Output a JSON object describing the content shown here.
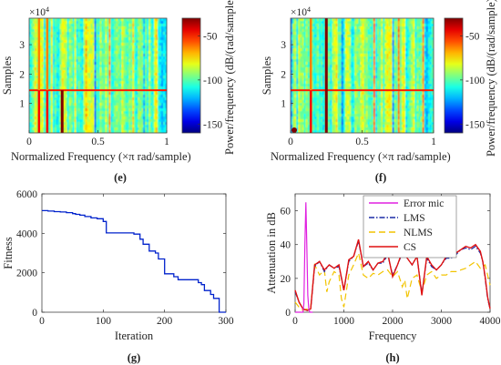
{
  "figure": {
    "captions": [
      "(e)",
      "(f)",
      "(g)",
      "(h)"
    ]
  },
  "chart_data": [
    {
      "type": "heatmap",
      "panel": "(e)",
      "xlabel": "Normalized Frequency  (×π rad/sample)",
      "ylabel": "Samples",
      "x_ticks": [
        0,
        0.5,
        1
      ],
      "x_tick_labels": [
        "0",
        "0.5",
        "1"
      ],
      "y_ticks": [
        1,
        2,
        3
      ],
      "y_tick_labels": [
        "1",
        "2",
        "3"
      ],
      "y_multiplier": "×10^4",
      "y_multiplier_base": "×10",
      "y_multiplier_exp": "4",
      "xlim": [
        0,
        1
      ],
      "ylim": [
        0,
        3.9
      ],
      "colorbar": {
        "label": "Power/frequency (dB/(rad/sample)",
        "ticks": [
          -50,
          -100,
          -150
        ],
        "tick_labels": [
          "-50",
          "-100",
          "-150"
        ],
        "range": [
          -160,
          -30
        ],
        "colormap": "jet"
      },
      "features": {
        "horizontal_line_samples": 1.45,
        "strong_tonal_lines_normalized_freq": [
          0.24
        ],
        "moderate_tonal_lines_normalized_freq": [
          0.13,
          0.07
        ]
      }
    },
    {
      "type": "heatmap",
      "panel": "(f)",
      "xlabel": "Normalized Frequency  (×π rad/sample)",
      "ylabel": "Samples",
      "x_ticks": [
        0,
        0.5,
        1
      ],
      "x_tick_labels": [
        "0",
        "0.5",
        "1"
      ],
      "y_ticks": [
        1,
        2,
        3
      ],
      "y_tick_labels": [
        "1",
        "2",
        "3"
      ],
      "y_multiplier": "×10^4",
      "y_multiplier_base": "×10",
      "y_multiplier_exp": "4",
      "xlim": [
        0,
        1
      ],
      "ylim": [
        0,
        3.9
      ],
      "colorbar": {
        "label": "Power/frequency (dB/(rad/sample))",
        "ticks": [
          -50,
          -100,
          -150
        ],
        "tick_labels": [
          "-50",
          "-100",
          "-150"
        ],
        "range": [
          -160,
          -30
        ],
        "colormap": "jet"
      },
      "features": {
        "horizontal_line_samples": 1.45,
        "strong_tonal_lines_normalized_freq": [
          0.25
        ],
        "moderate_tonal_lines_normalized_freq": [
          0.14
        ]
      }
    },
    {
      "type": "line",
      "panel": "(g)",
      "xlabel": "Iteration",
      "ylabel": "Fitness",
      "xlim": [
        0,
        300
      ],
      "ylim": [
        0,
        6000
      ],
      "x_ticks": [
        0,
        100,
        200,
        300
      ],
      "y_ticks": [
        0,
        2000,
        4000,
        6000
      ],
      "series": [
        {
          "color": "#0022cc",
          "step": true,
          "x": [
            0,
            10,
            20,
            30,
            40,
            50,
            55,
            62,
            70,
            80,
            90,
            100,
            105,
            150,
            160,
            165,
            175,
            185,
            190,
            200,
            212,
            215,
            222,
            240,
            255,
            260,
            265,
            275,
            280,
            287,
            289,
            300
          ],
          "y": [
            5150,
            5130,
            5100,
            5080,
            5050,
            5000,
            4960,
            4920,
            4850,
            4780,
            4740,
            4600,
            4020,
            3960,
            3700,
            3450,
            3100,
            3000,
            2700,
            1950,
            1950,
            1800,
            1650,
            1650,
            1500,
            1400,
            1100,
            900,
            700,
            700,
            0,
            0
          ]
        }
      ]
    },
    {
      "type": "line",
      "panel": "(h)",
      "xlabel": "Frequency",
      "ylabel": "Attenuation in dB",
      "xlim": [
        0,
        4000
      ],
      "ylim": [
        0,
        70
      ],
      "x_ticks": [
        0,
        1000,
        2000,
        3000,
        4000
      ],
      "y_ticks": [
        0,
        20,
        40,
        60
      ],
      "legend": {
        "placement": "top-right",
        "entries": [
          "Error mic",
          "LMS",
          "NLMS",
          "CS"
        ]
      },
      "series": [
        {
          "name": "Error mic",
          "color": "#e020e0",
          "dash": "",
          "x": [
            0,
            40,
            80,
            120,
            160,
            180,
            200,
            220,
            240,
            260,
            280,
            300,
            320,
            360
          ],
          "y": [
            0,
            0,
            0,
            0,
            0,
            5,
            40,
            65,
            40,
            10,
            2,
            0,
            0,
            0
          ]
        },
        {
          "name": "LMS",
          "color": "#1a2aa6",
          "dash": "6,2,1.5,2",
          "x": [
            0,
            80,
            160,
            250,
            320,
            400,
            500,
            600,
            700,
            800,
            900,
            1000,
            1100,
            1200,
            1300,
            1400,
            1500,
            1600,
            1700,
            1800,
            1900,
            2000,
            2100,
            2200,
            2300,
            2400,
            2500,
            2600,
            2700,
            2800,
            2900,
            3000,
            3100,
            3200,
            3300,
            3400,
            3500,
            3600,
            3700,
            3800,
            3850,
            3900,
            3950,
            4000
          ],
          "y": [
            12,
            6,
            2,
            1,
            2,
            27,
            30,
            24,
            28,
            26,
            27,
            13,
            30,
            33,
            42,
            27,
            29,
            25,
            29,
            29,
            34,
            22,
            28,
            35,
            32,
            28,
            33,
            11,
            32,
            27,
            25,
            28,
            32,
            32,
            34,
            37,
            38,
            37,
            39,
            35,
            30,
            20,
            8,
            2
          ]
        },
        {
          "name": "NLMS",
          "color": "#f2c400",
          "dash": "7,4",
          "x": [
            0,
            80,
            160,
            250,
            320,
            400,
            500,
            600,
            650,
            700,
            800,
            900,
            950,
            1000,
            1100,
            1200,
            1300,
            1400,
            1500,
            1600,
            1700,
            1800,
            1900,
            2000,
            2100,
            2200,
            2250,
            2300,
            2400,
            2500,
            2600,
            2700,
            2800,
            2900,
            3000,
            3100,
            3200,
            3300,
            3400,
            3500,
            3600,
            3700,
            3800,
            3900,
            4000
          ],
          "y": [
            6,
            3,
            1,
            2,
            3,
            28,
            22,
            25,
            12,
            18,
            24,
            22,
            8,
            3,
            22,
            28,
            35,
            22,
            20,
            23,
            22,
            24,
            25,
            21,
            24,
            15,
            19,
            8,
            20,
            22,
            12,
            22,
            24,
            20,
            22,
            22,
            24,
            24,
            25,
            26,
            28,
            30,
            26,
            28,
            16
          ]
        },
        {
          "name": "CS",
          "color": "#e01010",
          "dash": "",
          "x": [
            0,
            80,
            160,
            250,
            320,
            400,
            500,
            600,
            700,
            800,
            900,
            1000,
            1100,
            1200,
            1300,
            1400,
            1500,
            1600,
            1700,
            1800,
            1900,
            2000,
            2100,
            2200,
            2300,
            2400,
            2500,
            2600,
            2700,
            2800,
            2900,
            3000,
            3100,
            3200,
            3300,
            3400,
            3500,
            3600,
            3700,
            3800,
            3850,
            3900,
            3950,
            4000
          ],
          "y": [
            13,
            6,
            2,
            1,
            2,
            28,
            30,
            25,
            28,
            26,
            28,
            13,
            31,
            33,
            43,
            27,
            30,
            25,
            29,
            30,
            35,
            21,
            28,
            36,
            32,
            28,
            33,
            10,
            33,
            28,
            25,
            28,
            33,
            33,
            35,
            37,
            39,
            38,
            40,
            36,
            30,
            21,
            9,
            2
          ]
        }
      ]
    }
  ]
}
